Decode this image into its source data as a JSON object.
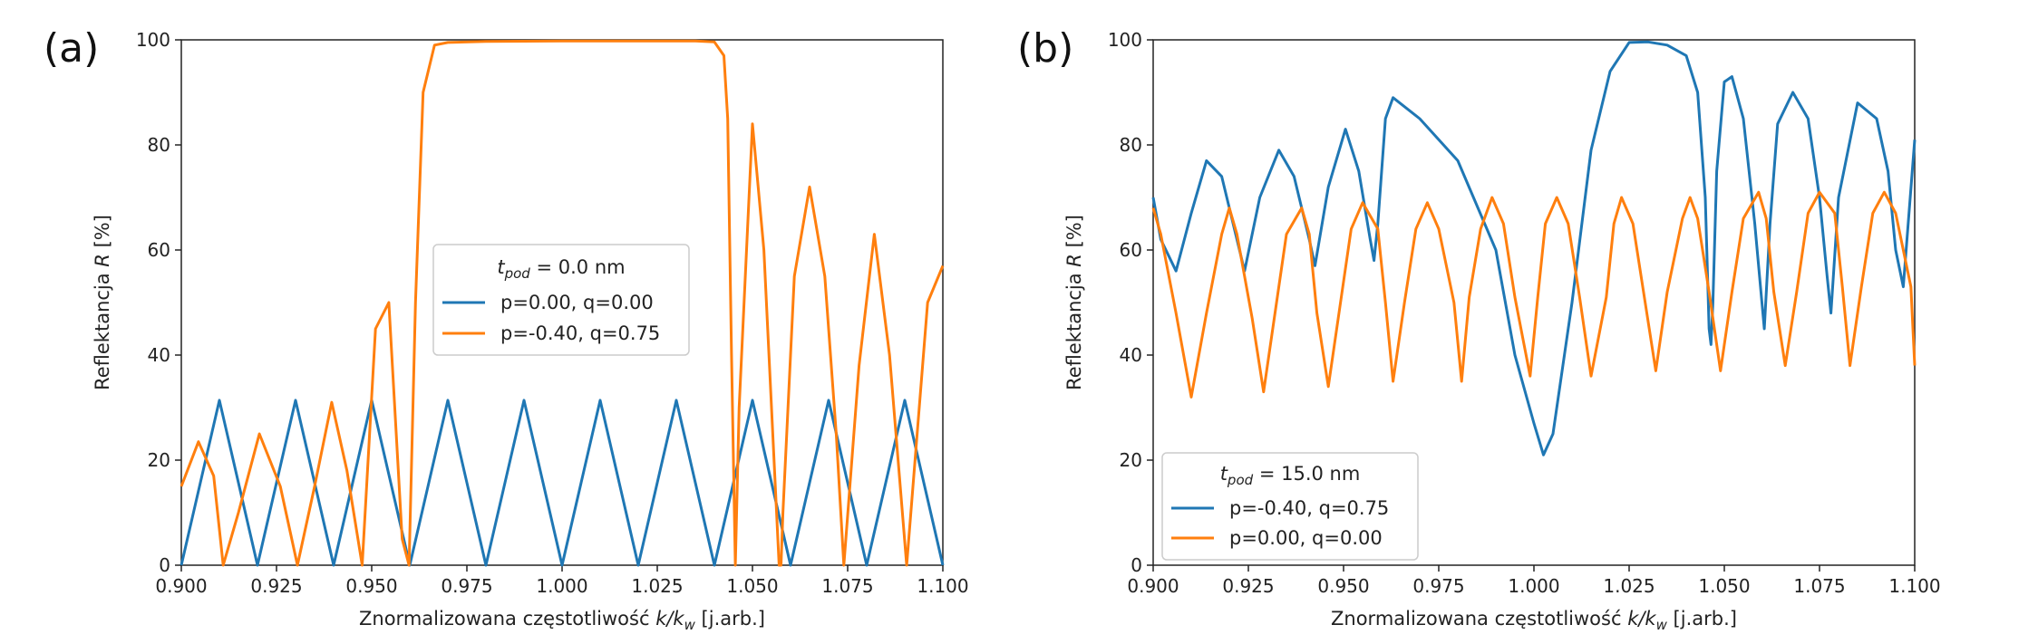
{
  "colors": {
    "blue": "#1f77b4",
    "orange": "#ff7f0e",
    "axis": "#222222"
  },
  "chart_data": [
    {
      "panel": "(a)",
      "type": "line",
      "xlabel_prefix": "Znormalizowana częstotliwość ",
      "xlabel_math": "k/k",
      "xlabel_sub": "w",
      "xlabel_suffix": " [j.arb.]",
      "ylabel_prefix": "Reflektancja ",
      "ylabel_math": "R",
      "ylabel_suffix": " [%]",
      "xlim": [
        0.9,
        1.1
      ],
      "ylim": [
        0,
        100
      ],
      "xticks": [
        "0.900",
        "0.925",
        "0.950",
        "0.975",
        "1.000",
        "1.025",
        "1.050",
        "1.075",
        "1.100"
      ],
      "yticks": [
        "0",
        "20",
        "40",
        "60",
        "80",
        "100"
      ],
      "legend": {
        "placement": "center",
        "title_math": "t",
        "title_sub": "pod",
        "title_suffix": " = 0.0 nm",
        "entries": [
          {
            "label": "p=0.00, q=0.00",
            "color": "blue"
          },
          {
            "label": "p=-0.40, q=0.75",
            "color": "orange"
          }
        ]
      },
      "series": [
        {
          "name": "p=0.00, q=0.00",
          "color": "blue",
          "x": [
            0.9,
            0.905,
            0.91,
            0.915,
            0.92,
            0.925,
            0.93,
            0.935,
            0.94,
            0.945,
            0.95,
            0.955,
            0.96,
            0.965,
            0.97,
            0.975,
            0.98,
            0.985,
            0.99,
            0.995,
            1.0,
            1.005,
            1.01,
            1.015,
            1.02,
            1.025,
            1.03,
            1.035,
            1.04,
            1.045,
            1.05,
            1.055,
            1.06,
            1.065,
            1.07,
            1.075,
            1.08,
            1.085,
            1.09,
            1.095,
            1.1
          ],
          "y": [
            0,
            15.7,
            31.4,
            15.7,
            0,
            15.7,
            31.4,
            15.7,
            0,
            15.7,
            31.4,
            15.7,
            0,
            15.7,
            31.4,
            15.7,
            0,
            15.7,
            31.4,
            15.7,
            0,
            15.7,
            31.4,
            15.7,
            0,
            15.7,
            31.4,
            15.7,
            0,
            15.7,
            31.4,
            15.7,
            0,
            15.7,
            31.4,
            15.7,
            0,
            15.7,
            31.4,
            15.7,
            0
          ]
        },
        {
          "name": "p=-0.40, q=0.75",
          "color": "orange",
          "x": [
            0.9,
            0.9045,
            0.9085,
            0.911,
            0.915,
            0.9205,
            0.926,
            0.9305,
            0.935,
            0.9395,
            0.9435,
            0.9475,
            0.951,
            0.9545,
            0.958,
            0.9598,
            0.9615,
            0.9635,
            0.9665,
            0.97,
            0.98,
            1.0,
            1.02,
            1.035,
            1.04,
            1.0425,
            1.0435,
            1.0445,
            1.0455,
            1.0465,
            1.05,
            1.053,
            1.057,
            1.0575,
            1.058,
            1.061,
            1.065,
            1.069,
            1.072,
            1.074,
            1.078,
            1.082,
            1.086,
            1.0905,
            1.096,
            1.1
          ],
          "y": [
            15,
            23.5,
            17,
            0,
            10,
            25,
            15,
            0,
            15,
            31,
            18,
            0,
            45,
            50,
            5,
            0,
            50,
            90,
            99,
            99.5,
            99.7,
            99.8,
            99.8,
            99.8,
            99.6,
            97,
            85,
            40,
            0,
            30,
            84,
            60,
            0,
            0,
            10,
            55,
            72,
            55,
            25,
            0,
            38,
            63,
            40,
            0,
            50,
            57
          ]
        }
      ]
    },
    {
      "panel": "(b)",
      "type": "line",
      "xlabel_prefix": "Znormalizowana częstotliwość ",
      "xlabel_math": "k/k",
      "xlabel_sub": "w",
      "xlabel_suffix": " [j.arb.]",
      "ylabel_prefix": "Reflektancja ",
      "ylabel_math": "R",
      "ylabel_suffix": " [%]",
      "xlim": [
        0.9,
        1.1
      ],
      "ylim": [
        0,
        100
      ],
      "xticks": [
        "0.900",
        "0.925",
        "0.950",
        "0.975",
        "1.000",
        "1.025",
        "1.050",
        "1.075",
        "1.100"
      ],
      "yticks": [
        "0",
        "20",
        "40",
        "60",
        "80",
        "100"
      ],
      "legend": {
        "placement": "bottom-left",
        "title_math": "t",
        "title_sub": "pod",
        "title_suffix": " = 15.0 nm",
        "entries": [
          {
            "label": "p=-0.40, q=0.75",
            "color": "blue"
          },
          {
            "label": "p=0.00, q=0.00",
            "color": "orange"
          }
        ]
      },
      "series": [
        {
          "name": "p=-0.40, q=0.75",
          "color": "blue",
          "x": [
            0.9,
            0.902,
            0.906,
            0.91,
            0.914,
            0.918,
            0.922,
            0.924,
            0.928,
            0.933,
            0.937,
            0.941,
            0.9425,
            0.946,
            0.9505,
            0.954,
            0.957,
            0.958,
            0.959,
            0.961,
            0.963,
            0.97,
            0.98,
            0.99,
            0.995,
            1.0,
            1.0025,
            1.005,
            1.01,
            1.015,
            1.02,
            1.025,
            1.03,
            1.035,
            1.04,
            1.043,
            1.045,
            1.046,
            1.0465,
            1.047,
            1.048,
            1.05,
            1.052,
            1.055,
            1.058,
            1.0605,
            1.062,
            1.064,
            1.068,
            1.072,
            1.075,
            1.077,
            1.078,
            1.08,
            1.085,
            1.09,
            1.093,
            1.095,
            1.097,
            1.1
          ],
          "y": [
            70,
            62,
            56,
            67,
            77,
            74,
            62,
            56,
            70,
            79,
            74,
            62,
            57,
            72,
            83,
            75,
            62,
            58,
            65,
            85,
            89,
            85,
            77,
            60,
            40,
            27,
            21,
            25,
            50,
            79,
            94,
            99.5,
            99.6,
            99,
            97,
            90,
            70,
            45,
            42,
            50,
            75,
            92,
            93,
            85,
            65,
            45,
            65,
            84,
            90,
            85,
            70,
            55,
            48,
            70,
            88,
            85,
            75,
            60,
            53,
            81
          ]
        },
        {
          "name": "p=0.00, q=0.00",
          "color": "orange",
          "x": [
            0.9,
            0.902,
            0.906,
            0.91,
            0.914,
            0.918,
            0.92,
            0.922,
            0.926,
            0.929,
            0.932,
            0.935,
            0.939,
            0.941,
            0.943,
            0.946,
            0.949,
            0.952,
            0.955,
            0.959,
            0.961,
            0.963,
            0.966,
            0.969,
            0.972,
            0.975,
            0.979,
            0.981,
            0.983,
            0.986,
            0.989,
            0.992,
            0.995,
            0.999,
            1.001,
            1.003,
            1.006,
            1.009,
            1.012,
            1.015,
            1.019,
            1.021,
            1.023,
            1.026,
            1.029,
            1.032,
            1.035,
            1.039,
            1.041,
            1.043,
            1.046,
            1.049,
            1.052,
            1.055,
            1.059,
            1.061,
            1.063,
            1.066,
            1.069,
            1.072,
            1.075,
            1.079,
            1.081,
            1.083,
            1.086,
            1.089,
            1.092,
            1.095,
            1.099,
            1.1
          ],
          "y": [
            68,
            63,
            48,
            32,
            48,
            63,
            68,
            63,
            47,
            33,
            48,
            63,
            68,
            63,
            48,
            34,
            49,
            64,
            69,
            64,
            50,
            35,
            50,
            64,
            69,
            64,
            50,
            35,
            51,
            64,
            70,
            65,
            51,
            36,
            51,
            65,
            70,
            65,
            51,
            36,
            51,
            65,
            70,
            65,
            51,
            37,
            52,
            66,
            70,
            66,
            52,
            37,
            52,
            66,
            71,
            66,
            52,
            38,
            52,
            67,
            71,
            67,
            53,
            38,
            53,
            67,
            71,
            67,
            53,
            38
          ]
        }
      ]
    }
  ]
}
